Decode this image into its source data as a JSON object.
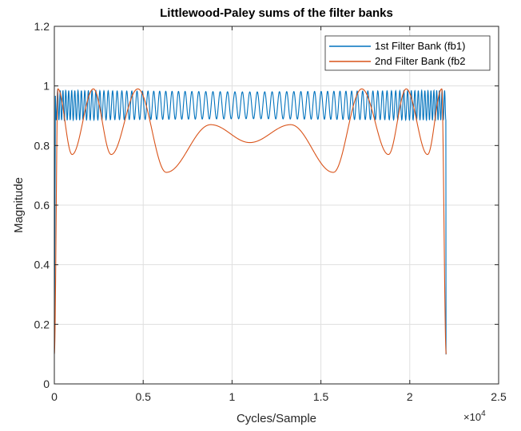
{
  "chart_data": {
    "type": "line",
    "title": "Littlewood-Paley sums of the filter banks",
    "xlabel": "Cycles/Sample",
    "ylabel": "Magnitude",
    "xlim": [
      0,
      25000
    ],
    "ylim": [
      0,
      1.2
    ],
    "x_exponent": "×10",
    "x_exponent_power": "4",
    "xticks": [
      0,
      5000,
      10000,
      15000,
      20000,
      25000
    ],
    "xtick_labels": [
      "0",
      "0.5",
      "1",
      "1.5",
      "2",
      "2.5"
    ],
    "yticks": [
      0,
      0.2,
      0.4,
      0.6,
      0.8,
      1,
      1.2
    ],
    "ytick_labels": [
      "0",
      "0.2",
      "0.4",
      "0.6",
      "0.8",
      "1",
      "1.2"
    ],
    "grid": true,
    "legend_position": "top-right",
    "series": [
      {
        "name": "1st Filter Bank (fb1)",
        "color": "#0072BD",
        "description_points": [
          [
            0,
            0.1
          ],
          [
            100,
            0.95
          ],
          [
            700,
            0.88
          ],
          [
            1100,
            0.99
          ],
          [
            11000,
            0.97
          ],
          [
            21100,
            0.99
          ],
          [
            21500,
            0.88
          ],
          [
            22000,
            0.95
          ],
          [
            22050,
            0.1
          ]
        ]
      },
      {
        "name": "2nd Filter Bank (fb2",
        "color": "#D95319",
        "description_points": [
          [
            0,
            0.1
          ],
          [
            200,
            0.99
          ],
          [
            1000,
            0.77
          ],
          [
            2200,
            0.99
          ],
          [
            3200,
            0.77
          ],
          [
            4700,
            0.99
          ],
          [
            6300,
            0.71
          ],
          [
            8800,
            0.87
          ],
          [
            11000,
            0.81
          ],
          [
            13300,
            0.87
          ],
          [
            15700,
            0.71
          ],
          [
            17300,
            0.99
          ],
          [
            18800,
            0.77
          ],
          [
            19800,
            0.99
          ],
          [
            21000,
            0.77
          ],
          [
            21800,
            0.99
          ],
          [
            22050,
            0.1
          ]
        ]
      }
    ]
  }
}
